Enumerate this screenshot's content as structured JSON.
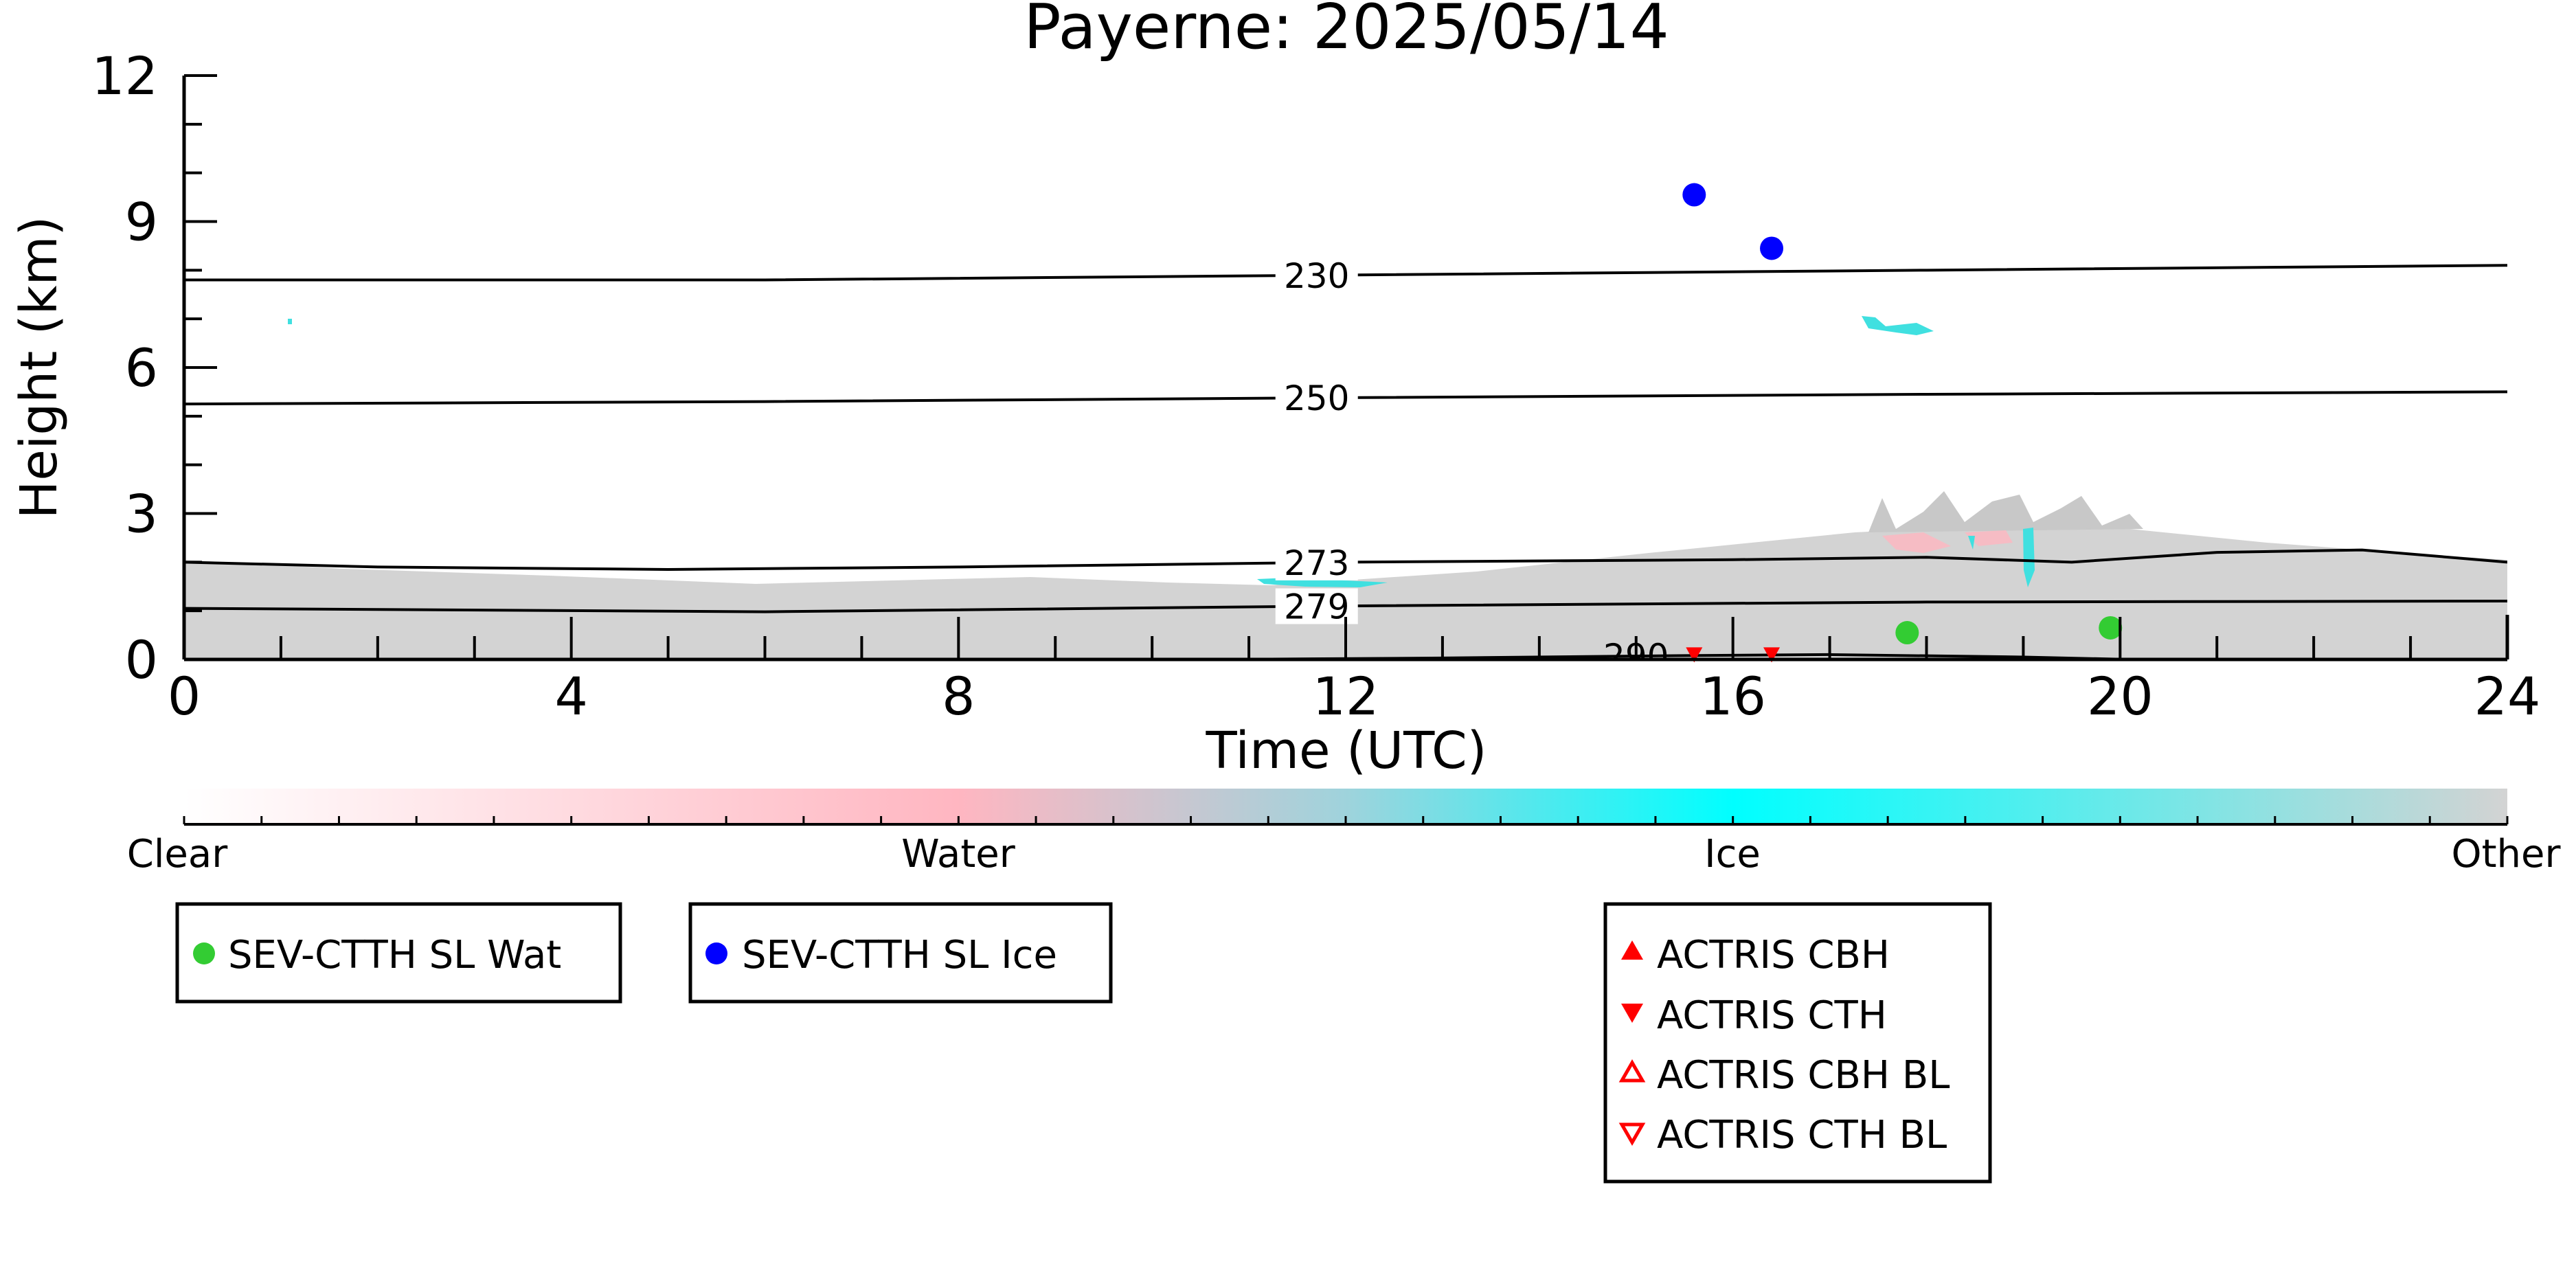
{
  "chart_data": {
    "type": "scatter",
    "title": "Payerne: 2025/05/14",
    "xlabel": "Time (UTC)",
    "ylabel": "Height (km)",
    "xlim": [
      0,
      24
    ],
    "ylim": [
      0,
      12
    ],
    "xticks": [
      "0",
      "4",
      "8",
      "12",
      "16",
      "20",
      "24"
    ],
    "yticks": [
      "0",
      "3",
      "6",
      "9",
      "12"
    ],
    "grid": false,
    "classification_colorbar": {
      "labels": [
        "Clear",
        "Water",
        "Ice",
        "Other"
      ],
      "colors": [
        "#ffffff",
        "#ffb6c1",
        "#00ffff",
        "#d3d3d3"
      ]
    },
    "temperature_contours": [
      {
        "label": "230",
        "points": [
          [
            0,
            7.8
          ],
          [
            6,
            7.8
          ],
          [
            12,
            7.9
          ],
          [
            18,
            8.0
          ],
          [
            24,
            8.1
          ]
        ]
      },
      {
        "label": "250",
        "points": [
          [
            0,
            5.25
          ],
          [
            6,
            5.3
          ],
          [
            12,
            5.38
          ],
          [
            18,
            5.45
          ],
          [
            24,
            5.5
          ]
        ]
      },
      {
        "label": "273",
        "points": [
          [
            0,
            2.0
          ],
          [
            2,
            1.9
          ],
          [
            5,
            1.85
          ],
          [
            8,
            1.9
          ],
          [
            12,
            2.0
          ],
          [
            16,
            2.05
          ],
          [
            18,
            2.1
          ],
          [
            19.5,
            2.0
          ],
          [
            21,
            2.2
          ],
          [
            22.5,
            2.25
          ],
          [
            24,
            2.0
          ]
        ]
      },
      {
        "label": "279",
        "points": [
          [
            0,
            1.05
          ],
          [
            6,
            0.98
          ],
          [
            12,
            1.1
          ],
          [
            18,
            1.18
          ],
          [
            24,
            1.2
          ]
        ]
      },
      {
        "label": "290",
        "points": [
          [
            10.7,
            0.0
          ],
          [
            13,
            0.03
          ],
          [
            15.5,
            0.08
          ],
          [
            17,
            0.1
          ],
          [
            19,
            0.05
          ],
          [
            20.1,
            0.0
          ]
        ]
      }
    ],
    "series": [
      {
        "name": "SEV-CTTH SL Wat",
        "marker": "circle",
        "color": "#33cc33",
        "points": [
          [
            17.8,
            0.55
          ],
          [
            19.9,
            0.65
          ]
        ]
      },
      {
        "name": "SEV-CTTH SL Ice",
        "marker": "circle",
        "color": "#0000ff",
        "points": [
          [
            15.6,
            9.55
          ],
          [
            16.4,
            8.45
          ]
        ]
      },
      {
        "name": "ACTRIS CBH",
        "marker": "triangle-up",
        "color": "#ff0000",
        "points": []
      },
      {
        "name": "ACTRIS CTH",
        "marker": "triangle-down",
        "color": "#ff0000",
        "points": [
          [
            15.6,
            0.08
          ],
          [
            16.4,
            0.08
          ]
        ]
      },
      {
        "name": "ACTRIS CBH BL",
        "marker": "triangle-up-open",
        "color": "#ff0000",
        "points": []
      },
      {
        "name": "ACTRIS CTH BL",
        "marker": "triangle-down-open",
        "color": "#ff0000",
        "points": []
      }
    ]
  }
}
